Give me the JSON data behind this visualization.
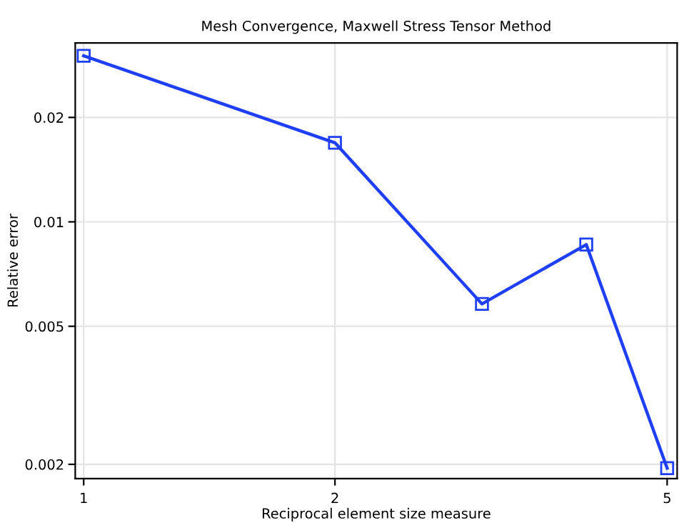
{
  "chart_data": {
    "type": "line",
    "title": "Mesh Convergence, Maxwell Stress Tensor Method",
    "xlabel": "Reciprocal element size measure",
    "ylabel": "Relative error",
    "x": [
      1,
      2,
      3,
      4,
      5
    ],
    "series": [
      {
        "color": "#1f3ff5",
        "values": [
          0.0301,
          0.0169,
          0.0058,
          0.0086,
          0.00195
        ]
      }
    ],
    "log": "xy",
    "xlim": [
      0.977,
      5.14
    ],
    "ylim": [
      0.00182,
      0.0328
    ],
    "xticks": [
      1,
      2,
      5
    ],
    "yticks": [
      0.002,
      0.005,
      0.01,
      0.02
    ],
    "grid": true,
    "marker": "square",
    "line_style": "solid",
    "legend": false
  }
}
